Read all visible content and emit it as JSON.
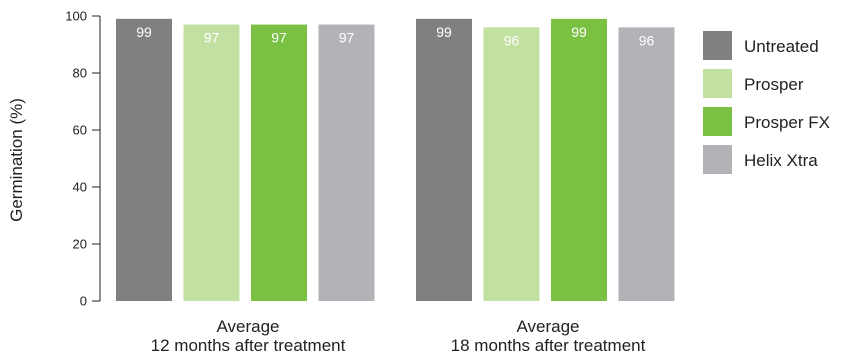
{
  "chart_data": {
    "type": "bar",
    "ylabel": "Germination (%)",
    "ylim": [
      0,
      100
    ],
    "yticks": [
      0,
      20,
      40,
      60,
      80,
      100
    ],
    "grid": false,
    "legend_placement": "right",
    "categories": [
      [
        "Average",
        "12 months after treatment"
      ],
      [
        "Average",
        "18 months after treatment"
      ]
    ],
    "series": [
      {
        "name": "Untreated",
        "color": "#808083",
        "values": [
          99,
          99
        ]
      },
      {
        "name": "Prosper",
        "color": "#c1e0a1",
        "values": [
          97,
          96
        ]
      },
      {
        "name": "Prosper FX",
        "color": "#7ac143",
        "values": [
          97,
          99
        ]
      },
      {
        "name": "Helix Xtra",
        "color": "#b1b3b6",
        "values": [
          97,
          96
        ]
      }
    ]
  }
}
